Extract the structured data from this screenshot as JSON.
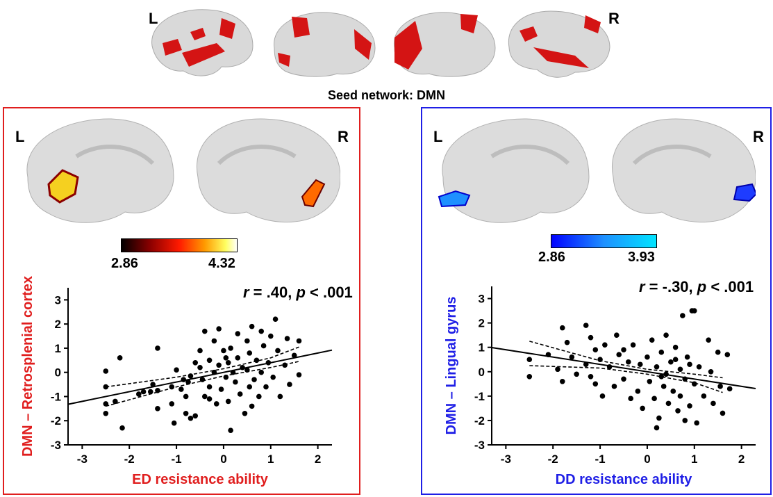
{
  "top": {
    "label_left": "L",
    "label_right": "R",
    "seed_title": "Seed network: DMN"
  },
  "panels": [
    {
      "id": "ed",
      "border_color": "#e01e1e",
      "label_left": "L",
      "label_right": "R",
      "colorbar": {
        "min_label": "2.86",
        "max_label": "4.32",
        "colors": [
          "#000000",
          "#8b0000",
          "#ff1a00",
          "#ff9a00",
          "#ffff60",
          "#ffffff"
        ]
      },
      "stat_r": "r",
      "stat_text": " = .40, ",
      "stat_p": "p",
      "stat_tail": " < .001"
    },
    {
      "id": "dd",
      "border_color": "#1f1fe6",
      "label_left": "L",
      "label_right": "R",
      "colorbar": {
        "min_label": "2.86",
        "max_label": "3.93",
        "colors": [
          "#0000ff",
          "#1e90ff",
          "#00e5ff"
        ]
      },
      "stat_r": "r",
      "stat_text": " = -.30, ",
      "stat_p": "p",
      "stat_tail": " < .001"
    }
  ],
  "chart_data": [
    {
      "type": "scatter",
      "xlabel": "ED resistance ability",
      "ylabel": "DMN – Retrosplenial cortex",
      "label_color": "#e01e1e",
      "xlim": [
        -3.3,
        2.3
      ],
      "ylim": [
        -3,
        3.5
      ],
      "xticks": [
        -3,
        -2,
        -1,
        0,
        1,
        2
      ],
      "yticks": [
        -3,
        -2,
        -1,
        0,
        1,
        2,
        3
      ],
      "fit": {
        "slope": 0.4,
        "intercept": 0.0
      },
      "ci_upper": [
        [
          -2.5,
          -0.6
        ],
        [
          -1,
          -0.2
        ],
        [
          0,
          0.15
        ],
        [
          1,
          0.6
        ],
        [
          1.6,
          1.05
        ]
      ],
      "ci_lower": [
        [
          -2.5,
          -1.4
        ],
        [
          -1,
          -0.6
        ],
        [
          0,
          -0.15
        ],
        [
          1,
          0.2
        ],
        [
          1.6,
          0.45
        ]
      ],
      "points": [
        [
          -2.5,
          0.05
        ],
        [
          -2.5,
          -0.6
        ],
        [
          -2.5,
          -1.3
        ],
        [
          -2.5,
          -1.7
        ],
        [
          -2.3,
          -1.2
        ],
        [
          -2.2,
          0.6
        ],
        [
          -2.15,
          -2.3
        ],
        [
          -1.8,
          -0.9
        ],
        [
          -1.7,
          -0.8
        ],
        [
          -1.55,
          -0.8
        ],
        [
          -1.5,
          -0.5
        ],
        [
          -1.4,
          1.0
        ],
        [
          -1.4,
          -1.5
        ],
        [
          -1.4,
          -0.75
        ],
        [
          -1.1,
          -0.6
        ],
        [
          -1.1,
          -1.3
        ],
        [
          -1.05,
          -2.1
        ],
        [
          -1.0,
          0.1
        ],
        [
          -0.9,
          -0.7
        ],
        [
          -0.85,
          -0.3
        ],
        [
          -0.8,
          -1.0
        ],
        [
          -0.8,
          -1.7
        ],
        [
          -0.75,
          -0.4
        ],
        [
          -0.7,
          -0.15
        ],
        [
          -0.7,
          -1.9
        ],
        [
          -0.6,
          -1.8
        ],
        [
          -0.5,
          0.9
        ],
        [
          -0.5,
          0.2
        ],
        [
          -0.45,
          -0.3
        ],
        [
          -0.4,
          1.7
        ],
        [
          -0.4,
          -1.0
        ],
        [
          -0.3,
          0.5
        ],
        [
          -0.3,
          -0.6
        ],
        [
          -0.2,
          1.3
        ],
        [
          -0.2,
          0.0
        ],
        [
          -0.15,
          -1.3
        ],
        [
          -0.1,
          1.8
        ],
        [
          -0.1,
          0.3
        ],
        [
          -0.05,
          -0.7
        ],
        [
          0.0,
          0.9
        ],
        [
          0.05,
          -0.2
        ],
        [
          0.1,
          0.4
        ],
        [
          0.1,
          -1.2
        ],
        [
          0.15,
          1.0
        ],
        [
          0.15,
          -2.4
        ],
        [
          0.2,
          0.0
        ],
        [
          0.25,
          -0.4
        ],
        [
          0.3,
          1.6
        ],
        [
          0.3,
          0.6
        ],
        [
          0.35,
          -0.9
        ],
        [
          0.4,
          0.2
        ],
        [
          0.45,
          -1.7
        ],
        [
          0.5,
          1.3
        ],
        [
          0.5,
          0.1
        ],
        [
          0.55,
          0.8
        ],
        [
          0.55,
          -0.6
        ],
        [
          0.6,
          1.9
        ],
        [
          0.65,
          -0.3
        ],
        [
          0.7,
          0.5
        ],
        [
          0.75,
          -1.0
        ],
        [
          0.8,
          1.7
        ],
        [
          0.8,
          0.0
        ],
        [
          0.85,
          1.1
        ],
        [
          0.9,
          -0.6
        ],
        [
          0.95,
          0.4
        ],
        [
          1.0,
          1.5
        ],
        [
          1.05,
          -0.2
        ],
        [
          1.1,
          2.2
        ],
        [
          1.15,
          0.9
        ],
        [
          1.2,
          -1.0
        ],
        [
          1.3,
          0.3
        ],
        [
          1.35,
          1.4
        ],
        [
          1.4,
          -0.5
        ],
        [
          1.5,
          0.7
        ],
        [
          1.6,
          1.3
        ],
        [
          1.6,
          -0.1
        ],
        [
          -0.3,
          -1.1
        ],
        [
          0.05,
          0.6
        ],
        [
          0.6,
          -1.4
        ],
        [
          -0.6,
          0.4
        ]
      ]
    },
    {
      "type": "scatter",
      "xlabel": "DD resistance ability",
      "ylabel": "DMN – Lingual gyrus",
      "label_color": "#1f1fe6",
      "xlim": [
        -3.3,
        2.3
      ],
      "ylim": [
        -3,
        3.5
      ],
      "xticks": [
        -3,
        -2,
        -1,
        0,
        1,
        2
      ],
      "yticks": [
        -3,
        -2,
        -1,
        0,
        1,
        2,
        3
      ],
      "fit": {
        "slope": -0.3,
        "intercept": 0.0
      },
      "ci_upper": [
        [
          -2.5,
          1.25
        ],
        [
          -1,
          0.45
        ],
        [
          0,
          0.1
        ],
        [
          1,
          -0.1
        ],
        [
          1.6,
          -0.25
        ]
      ],
      "ci_lower": [
        [
          -2.5,
          0.25
        ],
        [
          -1,
          0.15
        ],
        [
          0,
          -0.1
        ],
        [
          1,
          -0.45
        ],
        [
          1.6,
          -0.85
        ]
      ],
      "points": [
        [
          -2.5,
          0.5
        ],
        [
          -2.5,
          -0.2
        ],
        [
          -2.1,
          0.7
        ],
        [
          -1.9,
          0.1
        ],
        [
          -1.8,
          1.8
        ],
        [
          -1.8,
          -0.4
        ],
        [
          -1.7,
          1.2
        ],
        [
          -1.6,
          0.6
        ],
        [
          -1.5,
          -0.1
        ],
        [
          -1.3,
          1.9
        ],
        [
          -1.3,
          0.3
        ],
        [
          -1.2,
          1.4
        ],
        [
          -1.1,
          0.9
        ],
        [
          -1.1,
          -0.5
        ],
        [
          -1.0,
          0.5
        ],
        [
          -0.95,
          -1.0
        ],
        [
          -0.9,
          1.1
        ],
        [
          -0.8,
          0.2
        ],
        [
          -0.7,
          -0.6
        ],
        [
          -0.65,
          1.5
        ],
        [
          -0.6,
          0.7
        ],
        [
          -0.5,
          -0.3
        ],
        [
          -0.4,
          0.4
        ],
        [
          -0.35,
          -1.1
        ],
        [
          -0.3,
          1.1
        ],
        [
          -0.2,
          -0.8
        ],
        [
          -0.15,
          0.3
        ],
        [
          -0.1,
          -1.5
        ],
        [
          0.0,
          0.6
        ],
        [
          0.05,
          -0.4
        ],
        [
          0.1,
          1.3
        ],
        [
          0.15,
          -1.1
        ],
        [
          0.2,
          0.2
        ],
        [
          0.25,
          -1.9
        ],
        [
          0.3,
          0.8
        ],
        [
          0.35,
          -0.6
        ],
        [
          0.4,
          1.5
        ],
        [
          0.4,
          -0.1
        ],
        [
          0.45,
          -1.3
        ],
        [
          0.5,
          0.4
        ],
        [
          0.55,
          -0.8
        ],
        [
          0.6,
          1.0
        ],
        [
          0.65,
          -1.6
        ],
        [
          0.7,
          0.1
        ],
        [
          0.7,
          -1.0
        ],
        [
          0.75,
          2.3
        ],
        [
          0.8,
          -0.3
        ],
        [
          0.8,
          -2.0
        ],
        [
          0.85,
          0.6
        ],
        [
          0.9,
          -1.4
        ],
        [
          0.95,
          2.5
        ],
        [
          1.0,
          2.5
        ],
        [
          1.0,
          -0.5
        ],
        [
          1.05,
          -2.1
        ],
        [
          1.1,
          0.2
        ],
        [
          1.2,
          -1.0
        ],
        [
          1.3,
          1.3
        ],
        [
          1.35,
          0.0
        ],
        [
          1.4,
          -1.3
        ],
        [
          1.5,
          0.8
        ],
        [
          1.55,
          -0.6
        ],
        [
          1.6,
          -1.7
        ],
        [
          1.7,
          0.7
        ],
        [
          1.75,
          -0.7
        ],
        [
          -0.5,
          0.9
        ],
        [
          0.3,
          -0.2
        ],
        [
          0.6,
          0.5
        ],
        [
          -1.2,
          -0.2
        ],
        [
          0.2,
          -2.3
        ],
        [
          0.9,
          0.3
        ]
      ]
    }
  ]
}
